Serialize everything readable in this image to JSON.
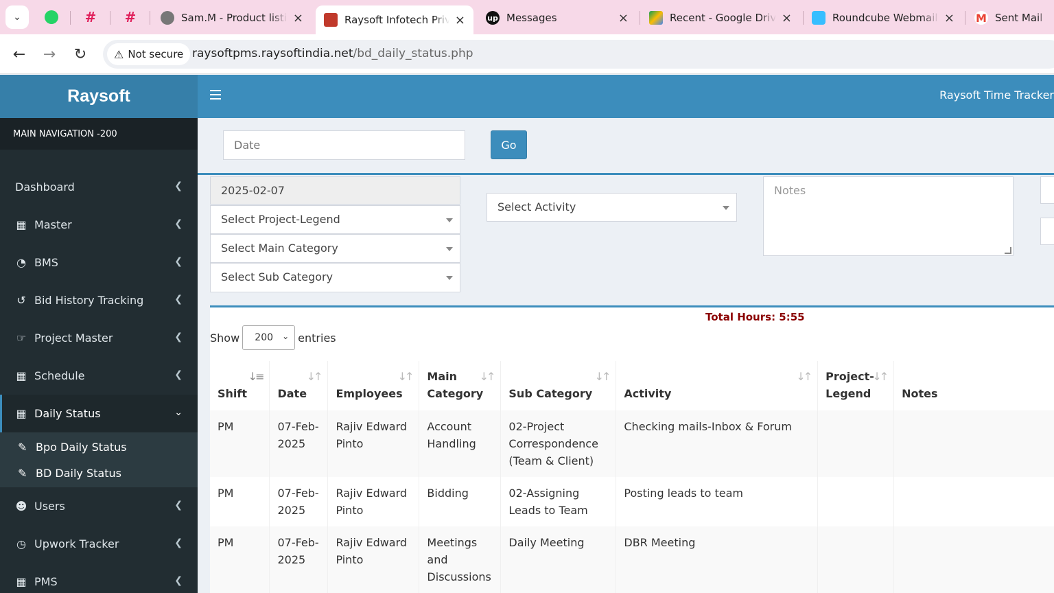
{
  "browser": {
    "tabs": [
      {
        "label": "Sam.M - Product listin",
        "active": false
      },
      {
        "label": "Raysoft Infotech Privat",
        "active": true
      },
      {
        "label": "Messages",
        "active": false
      },
      {
        "label": "Recent - Google Drive",
        "active": false
      },
      {
        "label": "Roundcube Webmail :",
        "active": false
      },
      {
        "label": "Sent Mail - su",
        "active": false
      }
    ],
    "security_label": "Not secure",
    "url_host": "raysoftpms.raysoftindia.net",
    "url_path": "/bd_daily_status.php"
  },
  "app": {
    "logo": "Raysoft",
    "brand": "Raysoft Time Tracker"
  },
  "sidebar": {
    "header": "MAIN NAVIGATION -200",
    "items": [
      {
        "label": "Dashboard"
      },
      {
        "label": "Master"
      },
      {
        "label": "BMS"
      },
      {
        "label": "Bid History Tracking"
      },
      {
        "label": "Project Master"
      },
      {
        "label": "Schedule"
      },
      {
        "label": "Daily Status"
      },
      {
        "label": "Users"
      },
      {
        "label": "Upwork Tracker"
      },
      {
        "label": "PMS"
      }
    ],
    "sub_items": [
      {
        "label": "Bpo Daily Status"
      },
      {
        "label": "BD Daily Status"
      }
    ]
  },
  "filter": {
    "date_placeholder": "Date",
    "go_label": "Go"
  },
  "form": {
    "date_value": "2025-02-07",
    "project_legend": "Select Project-Legend",
    "main_category": "Select Main Category",
    "sub_category": "Select Sub Category",
    "activity": "Select Activity",
    "notes_placeholder": "Notes"
  },
  "table": {
    "total_hours": "Total Hours: 5:55",
    "show_label": "Show",
    "entries_value": "200",
    "entries_label": "entries",
    "columns": [
      "Shift",
      "Date",
      "Employees",
      "Main Category",
      "Sub Category",
      "Activity",
      "Project-Legend",
      "Notes"
    ],
    "rows": [
      {
        "shift": "PM",
        "date": "07-Feb-2025",
        "employee": "Rajiv Edward Pinto",
        "main": "Account Handling",
        "sub": "02-Project Correspondence (Team & Client)",
        "activity": "Checking mails-Inbox & Forum",
        "legend": "",
        "notes": ""
      },
      {
        "shift": "PM",
        "date": "07-Feb-2025",
        "employee": "Rajiv Edward Pinto",
        "main": "Bidding",
        "sub": "02-Assigning Leads to Team",
        "activity": "Posting leads to team",
        "legend": "",
        "notes": ""
      },
      {
        "shift": "PM",
        "date": "07-Feb-2025",
        "employee": "Rajiv Edward Pinto",
        "main": "Meetings and Discussions",
        "sub": "Daily Meeting",
        "activity": "DBR Meeting",
        "legend": "",
        "notes": ""
      }
    ]
  }
}
